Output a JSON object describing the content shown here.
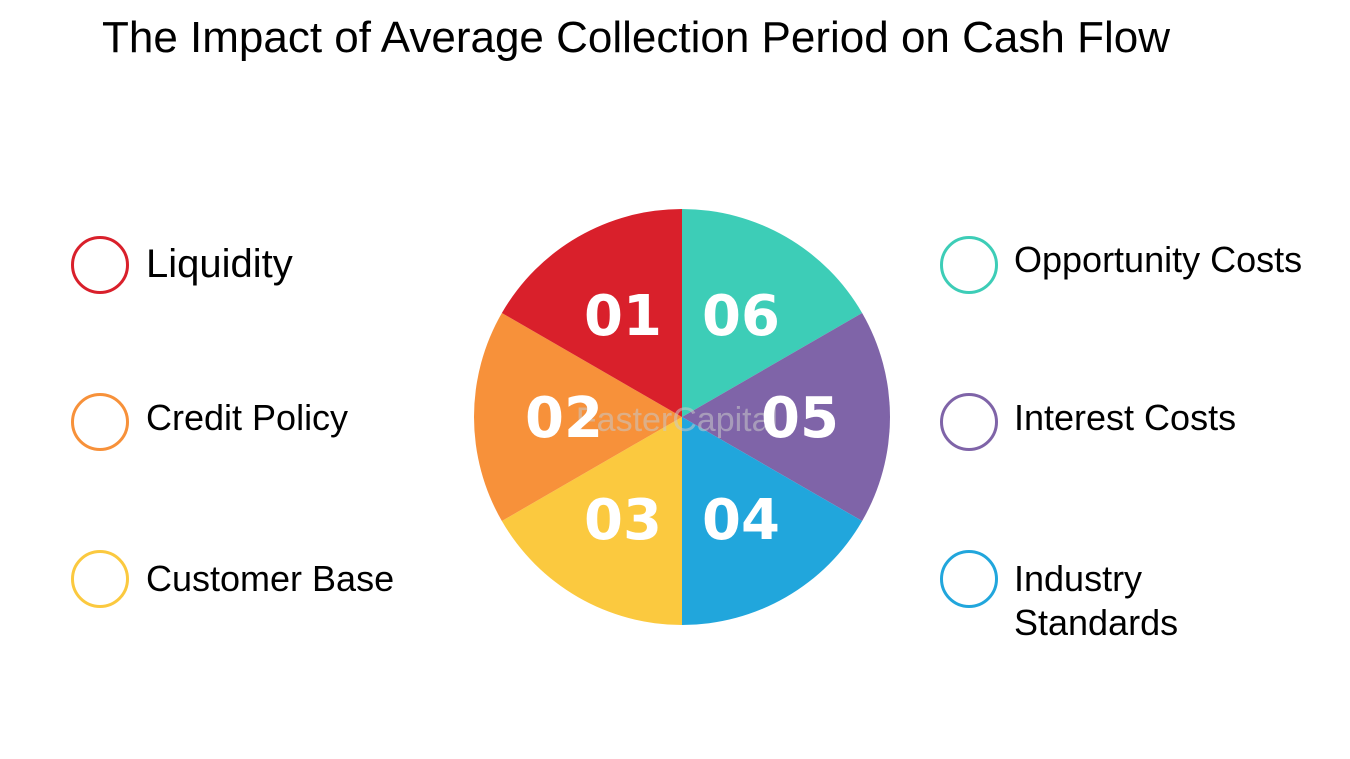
{
  "title": "The Impact of Average Collection Period on Cash Flow",
  "watermark": "FasterCapital",
  "items": [
    {
      "num": "01",
      "label": "Liquidity",
      "color": "#d9202b"
    },
    {
      "num": "02",
      "label": "Credit Policy",
      "color": "#f7913a"
    },
    {
      "num": "03",
      "label": "Customer Base",
      "color": "#fbc93f"
    },
    {
      "num": "04",
      "label": "Industry Standards",
      "color": "#21a6dc"
    },
    {
      "num": "05",
      "label": "Interest Costs",
      "color": "#7f64a8"
    },
    {
      "num": "06",
      "label": "Opportunity Costs",
      "color": "#3dcdb7"
    }
  ]
}
